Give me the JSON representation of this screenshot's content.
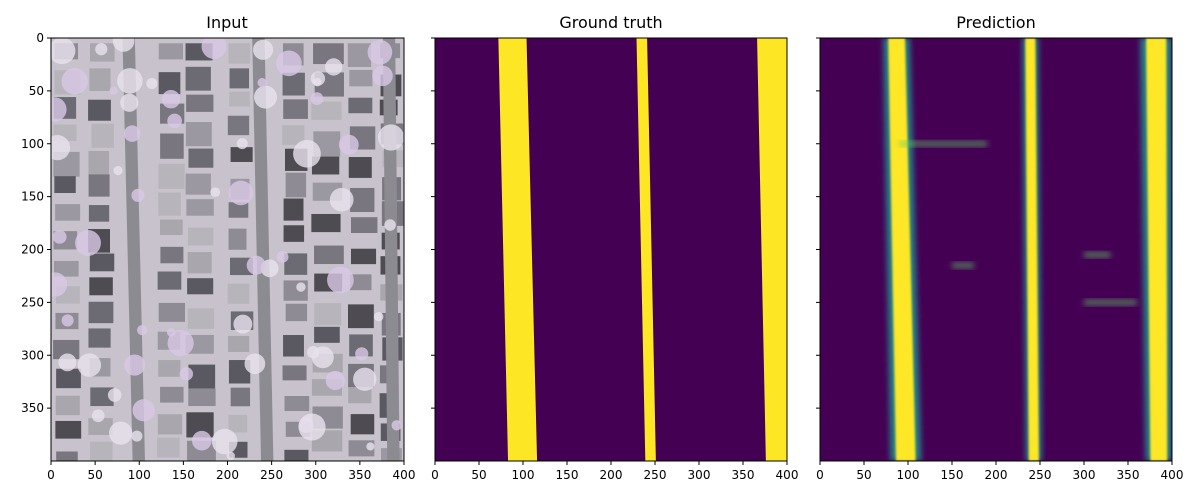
{
  "figure": {
    "panels": [
      {
        "title": "Input",
        "kind": "aerial-photo"
      },
      {
        "title": "Ground truth",
        "kind": "mask"
      },
      {
        "title": "Prediction",
        "kind": "heatmap"
      }
    ],
    "x_ticks": [
      "0",
      "50",
      "100",
      "150",
      "200",
      "250",
      "300",
      "350",
      "400"
    ],
    "y_ticks": [
      "0",
      "50",
      "100",
      "150",
      "200",
      "250",
      "300",
      "350"
    ],
    "colors": {
      "mask_background": "#440154",
      "mask_foreground": "#fde725",
      "mid_teal": "#21918c",
      "mid_green": "#5ec962"
    }
  },
  "chart_data": [
    {
      "type": "heatmap",
      "title": "Input",
      "xlim": [
        0,
        400
      ],
      "ylim": [
        400,
        0
      ],
      "content": "aerial imagery of residential blocks with three vertical streets"
    },
    {
      "type": "heatmap",
      "title": "Ground truth",
      "xlim": [
        0,
        400
      ],
      "ylim": [
        400,
        0
      ],
      "road_bands": [
        {
          "x_top": [
            72,
            104
          ],
          "x_bottom": [
            83,
            116
          ]
        },
        {
          "x_top": [
            229,
            241
          ],
          "x_bottom": [
            239,
            251
          ]
        },
        {
          "x_top": [
            366,
            400
          ],
          "x_bottom": [
            376,
            400
          ]
        }
      ]
    },
    {
      "type": "heatmap",
      "title": "Prediction",
      "xlim": [
        0,
        400
      ],
      "ylim": [
        400,
        0
      ],
      "road_bands": [
        {
          "x_top": [
            72,
            102
          ],
          "x_bottom": [
            80,
            115
          ]
        },
        {
          "x_top": [
            230,
            248
          ],
          "x_bottom": [
            234,
            252
          ]
        },
        {
          "x_top": [
            364,
            400
          ],
          "x_bottom": [
            370,
            400
          ]
        }
      ]
    }
  ]
}
